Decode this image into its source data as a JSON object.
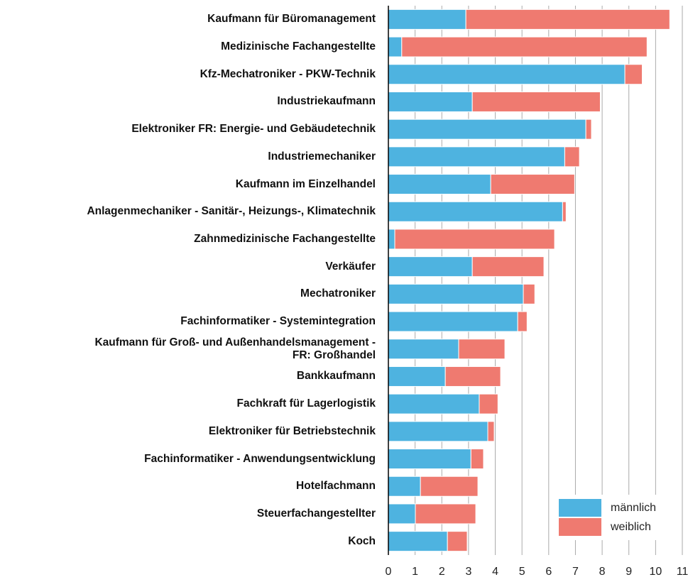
{
  "chart_data": {
    "type": "stacked_barh",
    "categories": [
      "Kaufmann für Büromanagement",
      "Medizinische Fachangestellte",
      "Kfz-Mechatroniker - PKW-Technik",
      "Industriekaufmann",
      "Elektroniker FR: Energie- und Gebäudetechnik",
      "Industriemechaniker",
      "Kaufmann im Einzelhandel",
      "Anlagenmechaniker - Sanitär-, Heizungs-, Klimatechnik",
      "Zahnmedizinische Fachangestellte",
      "Verkäufer",
      "Mechatroniker",
      "Fachinformatiker - Systemintegration",
      "Kaufmann für Groß- und Außenhandelsmanagement -\nFR: Großhandel",
      "Bankkaufmann",
      "Fachkraft für Lagerlogistik",
      "Elektroniker für Betriebstechnik",
      "Fachinformatiker - Anwendungsentwicklung",
      "Hotelfachmann",
      "Steuerfachangestellter",
      "Koch"
    ],
    "series": [
      {
        "name": "männlich",
        "color": "#4eb3e0",
        "values": [
          2.9,
          0.5,
          8.85,
          3.14,
          7.39,
          6.6,
          3.83,
          6.52,
          0.24,
          3.14,
          5.05,
          4.84,
          2.63,
          2.13,
          3.4,
          3.72,
          3.09,
          1.2,
          1.01,
          2.21
        ]
      },
      {
        "name": "weiblich",
        "color": "#ef7a70",
        "values": [
          7.63,
          9.18,
          0.65,
          4.79,
          0.21,
          0.55,
          3.14,
          0.13,
          5.98,
          2.68,
          0.43,
          0.35,
          1.73,
          2.07,
          0.7,
          0.24,
          0.47,
          2.15,
          2.26,
          0.74
        ]
      }
    ],
    "xlim": [
      0,
      11
    ],
    "xticks": [
      0,
      1,
      2,
      3,
      4,
      5,
      6,
      7,
      8,
      9,
      10,
      11
    ],
    "grid": true,
    "legend": "lower right"
  }
}
